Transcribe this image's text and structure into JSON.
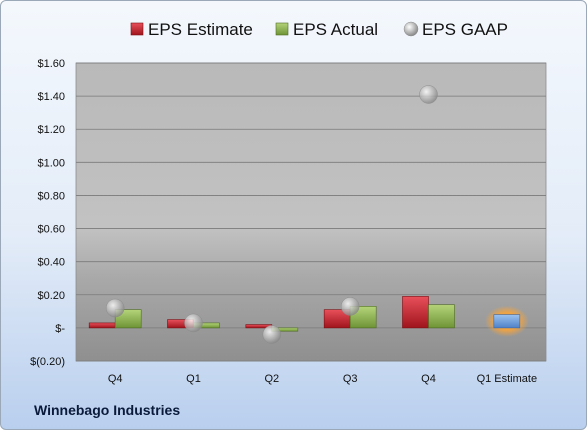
{
  "chart_data": {
    "type": "bar",
    "categories": [
      "Q4",
      "Q1",
      "Q2",
      "Q3",
      "Q4",
      "Q1 Estimate"
    ],
    "series": [
      {
        "name": "EPS Estimate",
        "kind": "bar",
        "color": "#c0202a",
        "values": [
          0.03,
          0.05,
          0.02,
          0.11,
          0.19,
          null
        ]
      },
      {
        "name": "EPS Actual",
        "kind": "bar",
        "color": "#8db24a",
        "values": [
          0.11,
          0.03,
          -0.02,
          0.13,
          0.14,
          null
        ]
      },
      {
        "name": "EPS GAAP",
        "kind": "point",
        "color": "#a6a6a6",
        "values": [
          0.12,
          0.03,
          -0.04,
          0.13,
          1.41,
          null
        ]
      }
    ],
    "future_estimate": {
      "category": "Q1 Estimate",
      "value": 0.08,
      "color": "#5b8fd6"
    },
    "y_ticks": [
      "$1.60",
      "$1.40",
      "$1.20",
      "$1.00",
      "$0.80",
      "$0.60",
      "$0.40",
      "$0.20",
      "$-",
      "$(0.20)"
    ],
    "ylim": [
      -0.2,
      1.6
    ],
    "legend_position": "top",
    "grid": true
  },
  "company_name": "Winnebago Industries"
}
